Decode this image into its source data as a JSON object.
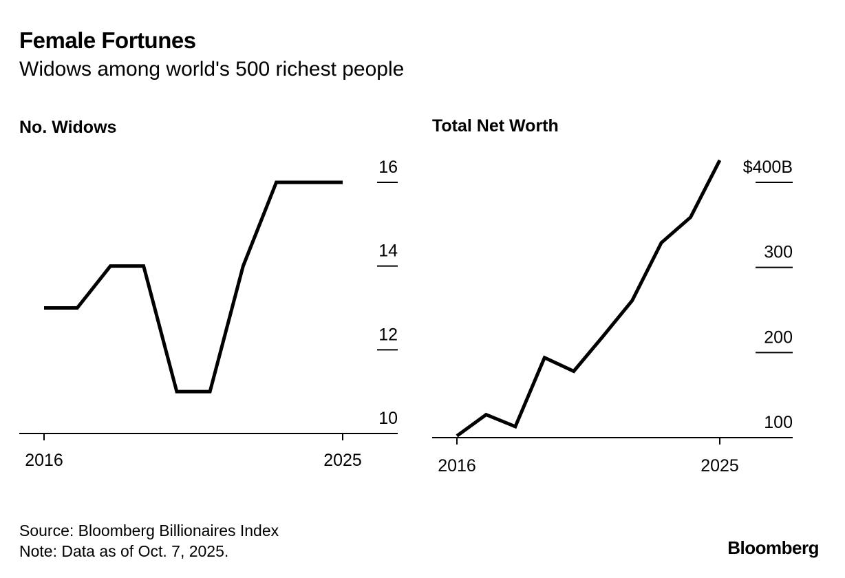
{
  "header": {
    "title": "Female Fortunes",
    "subtitle": "Widows among world's 500 richest people"
  },
  "footer": {
    "source": "Source: Bloomberg Billionaires Index",
    "note": "Note: Data as of Oct. 7, 2025.",
    "brand": "Bloomberg"
  },
  "colors": {
    "line": "#000000",
    "background": "#ffffff"
  },
  "chart_data": [
    {
      "type": "line",
      "title": "No. Widows",
      "x": [
        2016,
        2017,
        2018,
        2019,
        2020,
        2021,
        2022,
        2023,
        2024,
        2025
      ],
      "series": [
        {
          "name": "No. Widows",
          "values": [
            13,
            13,
            14,
            14,
            11,
            11,
            14,
            16,
            16,
            16
          ]
        }
      ],
      "xlabel": "",
      "ylabel": "",
      "xticks": [
        "2016",
        "2025"
      ],
      "yticks": [
        10,
        12,
        14,
        16
      ],
      "ytick_labels": [
        "10",
        "12",
        "14",
        "16"
      ],
      "ylim": [
        10,
        16
      ],
      "grid": false,
      "axis_side": "right"
    },
    {
      "type": "line",
      "title": "Total Net Worth",
      "x": [
        2016,
        2017,
        2018,
        2019,
        2020,
        2021,
        2022,
        2023,
        2024,
        2025
      ],
      "series": [
        {
          "name": "Total Net Worth ($B)",
          "values": [
            102,
            127,
            113,
            194,
            178,
            219,
            261,
            329,
            359,
            426
          ]
        }
      ],
      "xlabel": "",
      "ylabel": "",
      "xticks": [
        "2016",
        "2025"
      ],
      "yticks": [
        100,
        200,
        300,
        400
      ],
      "ytick_labels": [
        "100",
        "200",
        "300",
        "$400B"
      ],
      "ylim": [
        100,
        400
      ],
      "grid": false,
      "axis_side": "right"
    }
  ]
}
